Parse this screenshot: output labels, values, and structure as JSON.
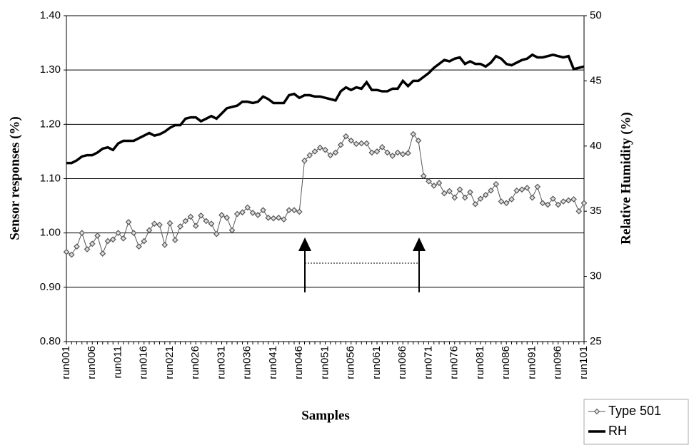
{
  "chart_data": {
    "type": "line",
    "x_label": "Samples",
    "y_label": "Sensor responses (%)",
    "y2_label": "Relative Humidity (%)",
    "categories": [
      "run001",
      null,
      null,
      null,
      null,
      "run006",
      null,
      null,
      null,
      null,
      "run011",
      null,
      null,
      null,
      null,
      "run016",
      null,
      null,
      null,
      null,
      "run021",
      null,
      null,
      null,
      null,
      "run026",
      null,
      null,
      null,
      null,
      "run031",
      null,
      null,
      null,
      null,
      "run036",
      null,
      null,
      null,
      null,
      "run041",
      null,
      null,
      null,
      null,
      "run046",
      null,
      null,
      null,
      null,
      "run051",
      null,
      null,
      null,
      null,
      "run056",
      null,
      null,
      null,
      null,
      "run061",
      null,
      null,
      null,
      null,
      "run066",
      null,
      null,
      null,
      null,
      "run071",
      null,
      null,
      null,
      null,
      "run076",
      null,
      null,
      null,
      null,
      "run081",
      null,
      null,
      null,
      null,
      "run086",
      null,
      null,
      null,
      null,
      "run091",
      null,
      null,
      null,
      null,
      "run096",
      null,
      null,
      null,
      null,
      "run101"
    ],
    "series": [
      {
        "name": "Type 501",
        "color": "#555555",
        "values": [
          0.965,
          0.96,
          0.975,
          1.0,
          0.97,
          0.98,
          0.995,
          0.962,
          0.985,
          0.988,
          1.0,
          0.99,
          1.02,
          1.0,
          0.975,
          0.985,
          1.005,
          1.017,
          1.015,
          0.978,
          1.018,
          0.987,
          1.012,
          1.022,
          1.03,
          1.013,
          1.032,
          1.022,
          1.017,
          0.998,
          1.033,
          1.028,
          1.005,
          1.035,
          1.038,
          1.047,
          1.037,
          1.033,
          1.042,
          1.028,
          1.027,
          1.028,
          1.025,
          1.042,
          1.042,
          1.039,
          1.133,
          1.143,
          1.15,
          1.157,
          1.153,
          1.143,
          1.148,
          1.162,
          1.178,
          1.17,
          1.164,
          1.165,
          1.165,
          1.148,
          1.15,
          1.158,
          1.148,
          1.142,
          1.148,
          1.145,
          1.147,
          1.182,
          1.17,
          1.105,
          1.095,
          1.087,
          1.092,
          1.073,
          1.077,
          1.065,
          1.08,
          1.065,
          1.075,
          1.053,
          1.063,
          1.07,
          1.078,
          1.09,
          1.058,
          1.055,
          1.062,
          1.078,
          1.08,
          1.083,
          1.065,
          1.085,
          1.055,
          1.052,
          1.063,
          1.052,
          1.058,
          1.06,
          1.062,
          1.04,
          1.055
        ]
      },
      {
        "name": "RH",
        "color": "#000000",
        "axis": "y2",
        "values": [
          38.7,
          38.7,
          38.9,
          39.2,
          39.3,
          39.3,
          39.5,
          39.8,
          39.9,
          39.7,
          40.2,
          40.4,
          40.4,
          40.4,
          40.6,
          40.8,
          41.0,
          40.8,
          40.9,
          41.1,
          41.4,
          41.6,
          41.6,
          42.1,
          42.2,
          42.2,
          41.9,
          42.1,
          42.3,
          42.1,
          42.5,
          42.9,
          43.0,
          43.1,
          43.4,
          43.4,
          43.3,
          43.4,
          43.8,
          43.6,
          43.3,
          43.3,
          43.3,
          43.9,
          44.0,
          43.7,
          43.9,
          43.9,
          43.8,
          43.8,
          43.7,
          43.6,
          43.5,
          44.2,
          44.5,
          44.3,
          44.5,
          44.4,
          44.9,
          44.3,
          44.3,
          44.2,
          44.2,
          44.4,
          44.4,
          45.0,
          44.6,
          45.0,
          45.0,
          45.3,
          45.6,
          46.0,
          46.3,
          46.6,
          46.5,
          46.7,
          46.8,
          46.3,
          46.5,
          46.3,
          46.3,
          46.1,
          46.4,
          46.9,
          46.7,
          46.3,
          46.2,
          46.4,
          46.6,
          46.7,
          47.0,
          46.8,
          46.8,
          46.9,
          47.0,
          46.9,
          46.8,
          46.9,
          45.9,
          46.0,
          46.1
        ]
      }
    ],
    "ylim": [
      0.8,
      1.4
    ],
    "yticks": [
      {
        "value": 0.8,
        "label": "0.80"
      },
      {
        "value": 0.9,
        "label": "0.90"
      },
      {
        "value": 1,
        "label": "1.00"
      },
      {
        "value": 1.1,
        "label": "1.10"
      },
      {
        "value": 1.2,
        "label": "1.20"
      },
      {
        "value": 1.3,
        "label": "1.30"
      },
      {
        "value": 1.4,
        "label": "1.40"
      }
    ],
    "y2lim": [
      25,
      50
    ],
    "y2ticks": [
      25,
      30,
      35,
      40,
      45,
      50
    ],
    "grid": true,
    "legend": "bottom-right"
  }
}
